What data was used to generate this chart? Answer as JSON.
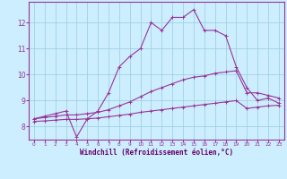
{
  "xlabel": "Windchill (Refroidissement éolien,°C)",
  "bg_color": "#cceeff",
  "line_color": "#993399",
  "grid_color": "#99ccdd",
  "xlim": [
    -0.5,
    23.5
  ],
  "ylim": [
    7.5,
    12.8
  ],
  "xticks": [
    0,
    1,
    2,
    3,
    4,
    5,
    6,
    7,
    8,
    9,
    10,
    11,
    12,
    13,
    14,
    15,
    16,
    17,
    18,
    19,
    20,
    21,
    22,
    23
  ],
  "yticks": [
    8,
    9,
    10,
    11,
    12
  ],
  "line1_x": [
    0,
    1,
    2,
    3,
    4,
    5,
    6,
    7,
    8,
    9,
    10,
    11,
    12,
    13,
    14,
    15,
    16,
    17,
    18,
    19,
    20,
    21,
    22,
    23
  ],
  "line1_y": [
    8.3,
    8.4,
    8.5,
    8.6,
    7.6,
    8.3,
    8.6,
    9.3,
    10.3,
    10.7,
    11.0,
    12.0,
    11.7,
    12.2,
    12.2,
    12.5,
    11.7,
    11.7,
    11.5,
    10.3,
    9.5,
    9.0,
    9.1,
    8.9
  ],
  "line2_x": [
    0,
    1,
    2,
    3,
    4,
    5,
    6,
    7,
    8,
    9,
    10,
    11,
    12,
    13,
    14,
    15,
    16,
    17,
    18,
    19,
    20,
    21,
    22,
    23
  ],
  "line2_y": [
    8.3,
    8.35,
    8.4,
    8.45,
    8.45,
    8.5,
    8.55,
    8.65,
    8.8,
    8.95,
    9.15,
    9.35,
    9.5,
    9.65,
    9.8,
    9.9,
    9.95,
    10.05,
    10.1,
    10.15,
    9.3,
    9.3,
    9.2,
    9.1
  ],
  "line3_x": [
    0,
    1,
    2,
    3,
    4,
    5,
    6,
    7,
    8,
    9,
    10,
    11,
    12,
    13,
    14,
    15,
    16,
    17,
    18,
    19,
    20,
    21,
    22,
    23
  ],
  "line3_y": [
    8.2,
    8.22,
    8.25,
    8.28,
    8.28,
    8.3,
    8.33,
    8.38,
    8.43,
    8.48,
    8.55,
    8.6,
    8.65,
    8.7,
    8.75,
    8.8,
    8.85,
    8.9,
    8.95,
    9.0,
    8.7,
    8.75,
    8.8,
    8.82
  ],
  "xlabel_color": "#660066",
  "tick_color": "#993399",
  "xlabel_fontsize": 5.5,
  "xtick_fontsize": 4.2,
  "ytick_fontsize": 5.5
}
